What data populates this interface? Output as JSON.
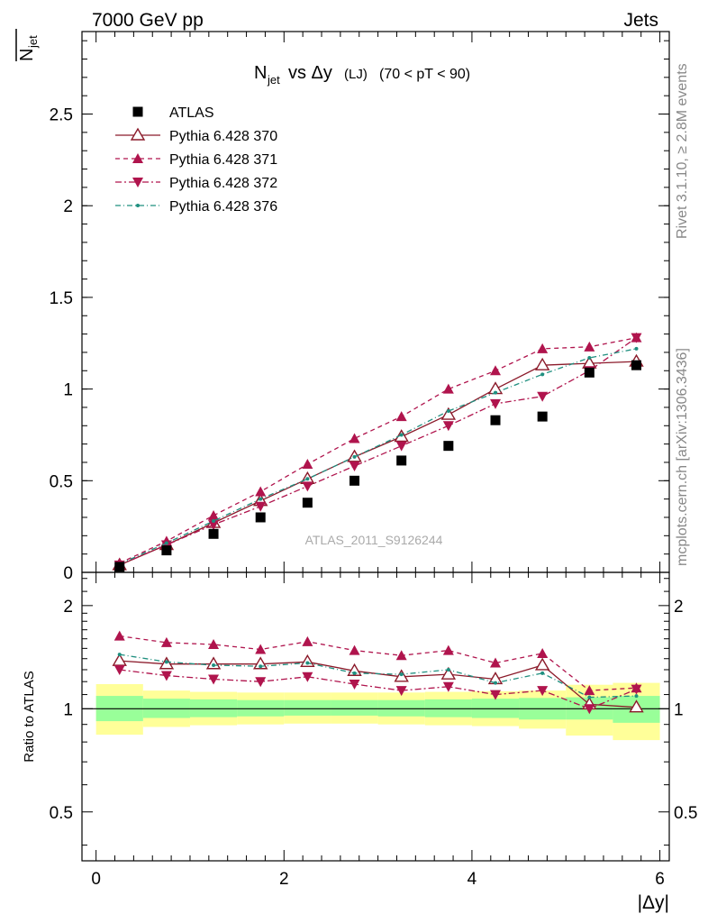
{
  "header": {
    "left": "7000 GeV pp",
    "right": "Jets"
  },
  "ylabel_main": "N̄jet",
  "plot_title": "Njet vs Δy (LJ) (70 < pT <  90)",
  "analysis_id": "ATLAS_2011_S9126244",
  "side_text": {
    "rivet": "Rivet 3.1.10, ≥ 2.8M events",
    "mcplots": "mcplots.cern.ch [arXiv:1306.3436]"
  },
  "ratio_ylabel": "Ratio to ATLAS",
  "xlabel": "|Δy|",
  "colors": {
    "atlas": "#000000",
    "p370": "#8b1a2a",
    "p371": "#b0144d",
    "p372": "#b0144d",
    "p376": "#1f8f7f",
    "band_inner": "#99ff99",
    "band_outer": "#ffff99"
  },
  "chart_data": [
    {
      "type": "scatter",
      "x": [
        0.25,
        0.75,
        1.25,
        1.75,
        2.25,
        2.75,
        3.25,
        3.75,
        4.25,
        4.75,
        5.25,
        5.75
      ],
      "xlim": [
        -0.15,
        6.1
      ],
      "ylim": [
        0,
        2.95
      ],
      "yticks": [
        0.5,
        1,
        1.5,
        2,
        2.5
      ],
      "series": [
        {
          "name": "ATLAS",
          "values": [
            0.03,
            0.12,
            0.21,
            0.3,
            0.38,
            0.5,
            0.61,
            0.69,
            0.83,
            0.85,
            1.09,
            1.13
          ]
        },
        {
          "name": "Pythia 6.428 370",
          "values": [
            0.04,
            0.15,
            0.27,
            0.39,
            0.51,
            0.63,
            0.74,
            0.86,
            1.0,
            1.13,
            1.14,
            1.15
          ]
        },
        {
          "name": "Pythia 6.428 371",
          "values": [
            0.05,
            0.17,
            0.31,
            0.44,
            0.59,
            0.73,
            0.85,
            1.0,
            1.1,
            1.22,
            1.23,
            1.28
          ]
        },
        {
          "name": "Pythia 6.428 372",
          "values": [
            0.04,
            0.15,
            0.26,
            0.36,
            0.47,
            0.58,
            0.69,
            0.8,
            0.92,
            0.96,
            1.1,
            1.28
          ]
        },
        {
          "name": "Pythia 6.428 376",
          "values": [
            0.045,
            0.16,
            0.28,
            0.4,
            0.51,
            0.63,
            0.75,
            0.88,
            0.98,
            1.08,
            1.17,
            1.22
          ]
        }
      ]
    },
    {
      "type": "line",
      "ylabel": "Ratio to ATLAS",
      "xlabel": "|Δy|",
      "ylim": [
        0.36,
        2.5
      ],
      "log_scale_y": true,
      "xticks": [
        0,
        2,
        4,
        6
      ],
      "yticks": [
        0.5,
        1,
        2
      ],
      "band_edges": [
        0,
        0.5,
        1,
        1.5,
        2,
        2.5,
        3,
        3.5,
        4,
        4.5,
        5,
        5.5,
        6
      ],
      "band_inner": [
        [
          0.92,
          1.09
        ],
        [
          0.94,
          1.07
        ],
        [
          0.945,
          1.065
        ],
        [
          0.95,
          1.06
        ],
        [
          0.955,
          1.06
        ],
        [
          0.955,
          1.06
        ],
        [
          0.95,
          1.06
        ],
        [
          0.945,
          1.065
        ],
        [
          0.94,
          1.07
        ],
        [
          0.93,
          1.075
        ],
        [
          0.93,
          1.08
        ],
        [
          0.91,
          1.09
        ]
      ],
      "band_outer": [
        [
          0.84,
          1.18
        ],
        [
          0.885,
          1.13
        ],
        [
          0.895,
          1.12
        ],
        [
          0.9,
          1.115
        ],
        [
          0.905,
          1.115
        ],
        [
          0.905,
          1.115
        ],
        [
          0.9,
          1.115
        ],
        [
          0.895,
          1.12
        ],
        [
          0.89,
          1.125
        ],
        [
          0.875,
          1.13
        ],
        [
          0.835,
          1.175
        ],
        [
          0.81,
          1.19
        ]
      ],
      "series": [
        {
          "name": "Pythia 6.428 370",
          "values": [
            1.38,
            1.35,
            1.35,
            1.35,
            1.37,
            1.29,
            1.24,
            1.26,
            1.22,
            1.34,
            1.03,
            1.01
          ]
        },
        {
          "name": "Pythia 6.428 371",
          "values": [
            1.63,
            1.56,
            1.54,
            1.49,
            1.57,
            1.48,
            1.43,
            1.48,
            1.36,
            1.45,
            1.13,
            1.15
          ]
        },
        {
          "name": "Pythia 6.428 372",
          "values": [
            1.3,
            1.25,
            1.22,
            1.2,
            1.24,
            1.18,
            1.13,
            1.16,
            1.1,
            1.13,
            1.0,
            1.14
          ]
        },
        {
          "name": "Pythia 6.428 376",
          "values": [
            1.44,
            1.37,
            1.34,
            1.33,
            1.36,
            1.27,
            1.26,
            1.3,
            1.19,
            1.27,
            1.08,
            1.09
          ]
        }
      ]
    }
  ]
}
